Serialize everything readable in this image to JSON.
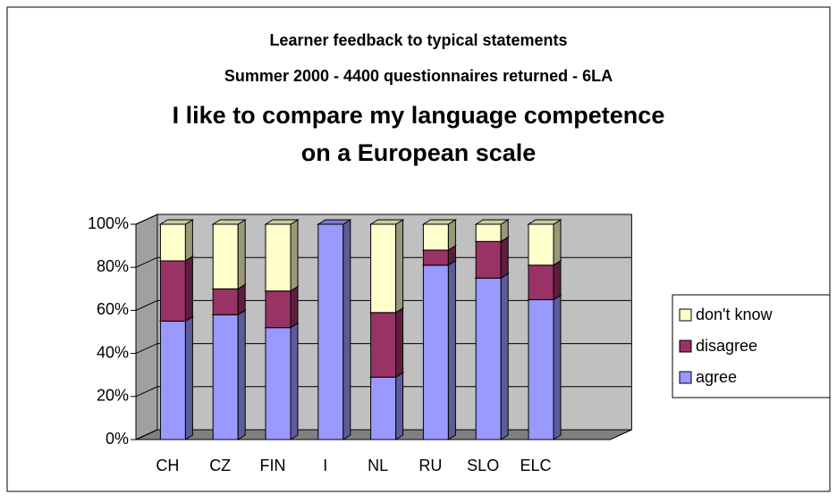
{
  "chart_data": {
    "type": "bar3d_stacked",
    "heading": [
      "Learner feedback to typical statements",
      "Summer 2000 - 4400 questionnaires returned - 6LA"
    ],
    "title": [
      "I like to compare my language competence",
      "on a European scale"
    ],
    "categories": [
      "CH",
      "CZ",
      "FIN",
      "I",
      "NL",
      "RU",
      "SLO",
      "ELC"
    ],
    "series": [
      {
        "name": "agree",
        "color": "#9999ff",
        "values": [
          55,
          58,
          52,
          100,
          29,
          81,
          75,
          65
        ]
      },
      {
        "name": "disagree",
        "color": "#993366",
        "values": [
          28,
          12,
          17,
          0,
          30,
          7,
          17,
          16
        ]
      },
      {
        "name": "don't know",
        "color": "#ffffcc",
        "values": [
          17,
          30,
          31,
          0,
          41,
          12,
          8,
          19
        ]
      }
    ],
    "ylim": [
      0,
      100
    ],
    "yticks": [
      {
        "value": 0,
        "label": "0%"
      },
      {
        "value": 20,
        "label": "20%"
      },
      {
        "value": 40,
        "label": "40%"
      },
      {
        "value": 60,
        "label": "60%"
      },
      {
        "value": 80,
        "label": "80%"
      },
      {
        "value": 100,
        "label": "100%"
      }
    ],
    "grid": true,
    "legend": "right"
  }
}
